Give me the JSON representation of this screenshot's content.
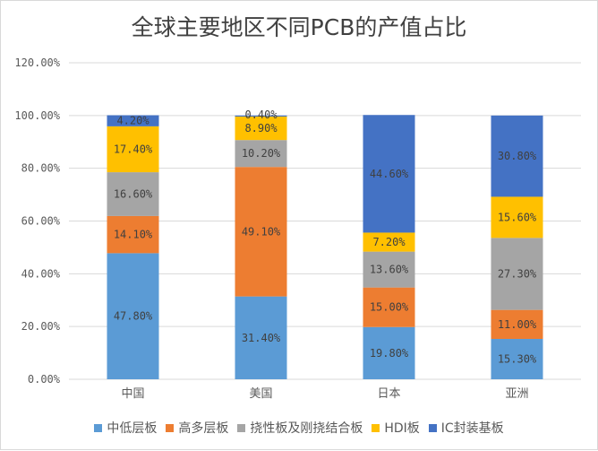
{
  "chart_data": {
    "type": "bar",
    "stacked": true,
    "title": "全球主要地区不同PCB的产值占比",
    "xlabel": "",
    "ylabel": "",
    "ylim": [
      0,
      120
    ],
    "yticks": [
      "0.00%",
      "20.00%",
      "40.00%",
      "60.00%",
      "80.00%",
      "100.00%",
      "120.00%"
    ],
    "ytick_values": [
      0,
      20,
      40,
      60,
      80,
      100,
      120
    ],
    "grid": true,
    "legend_position": "bottom",
    "categories": [
      "中国",
      "美国",
      "日本",
      "亚洲"
    ],
    "series": [
      {
        "name": "中低层板",
        "color": "#5B9BD5",
        "values": [
          47.8,
          31.4,
          19.8,
          15.3
        ],
        "labels": [
          "47.80%",
          "31.40%",
          "19.80%",
          "15.30%"
        ]
      },
      {
        "name": "高多层板",
        "color": "#ED7D31",
        "values": [
          14.1,
          49.1,
          15.0,
          11.0
        ],
        "labels": [
          "14.10%",
          "49.10%",
          "15.00%",
          "11.00%"
        ]
      },
      {
        "name": "挠性板及刚挠结合板",
        "color": "#A5A5A5",
        "values": [
          16.6,
          10.2,
          13.6,
          27.3
        ],
        "labels": [
          "16.60%",
          "10.20%",
          "13.60%",
          "27.30%"
        ]
      },
      {
        "name": "HDI板",
        "color": "#FFC000",
        "values": [
          17.4,
          8.9,
          7.2,
          15.6
        ],
        "labels": [
          "17.40%",
          "8.90%",
          "7.20%",
          "15.60%"
        ]
      },
      {
        "name": "IC封装基板",
        "color": "#4472C4",
        "values": [
          4.2,
          0.4,
          44.6,
          30.8
        ],
        "labels": [
          "4.20%",
          "0.40%",
          "44.60%",
          "30.80%"
        ]
      }
    ]
  }
}
